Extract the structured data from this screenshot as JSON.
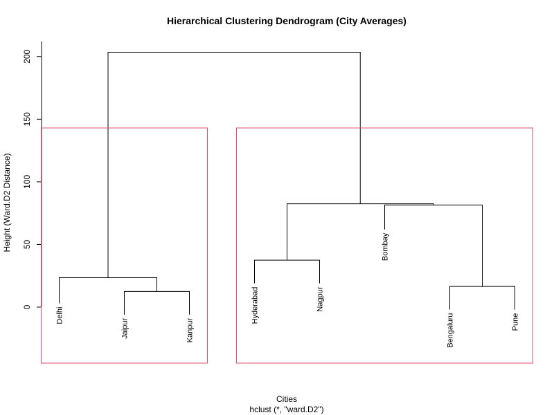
{
  "chart_data": {
    "type": "dendrogram",
    "title": "Hierarchical Clustering Dendrogram (City Averages)",
    "ylabel": "Height (Ward.D2 Distance)",
    "xlabel": "Cities",
    "sub": "hclust (*, \"ward.D2\")",
    "ylim": [
      0,
      200
    ],
    "yticks": [
      0,
      50,
      100,
      150,
      200
    ],
    "leaves": [
      {
        "name": "Delhi",
        "height": 3
      },
      {
        "name": "Jaipur",
        "height": -6
      },
      {
        "name": "Kanpur",
        "height": -6
      },
      {
        "name": "Hyderabad",
        "height": 19
      },
      {
        "name": "Nagpur",
        "height": 19
      },
      {
        "name": "Bombay",
        "height": 62
      },
      {
        "name": "Bengaluru",
        "height": -2
      },
      {
        "name": "Pune",
        "height": -2
      }
    ],
    "merges": [
      {
        "left": {
          "leaf": 1
        },
        "right": {
          "leaf": 2
        },
        "height": 12.5
      },
      {
        "left": {
          "leaf": 0
        },
        "right": {
          "merge": 0
        },
        "height": 23.5
      },
      {
        "left": {
          "leaf": 3
        },
        "right": {
          "leaf": 4
        },
        "height": 37.5
      },
      {
        "left": {
          "leaf": 6
        },
        "right": {
          "leaf": 7
        },
        "height": 16.5
      },
      {
        "left": {
          "leaf": 5
        },
        "right": {
          "merge": 3
        },
        "height": 81.5
      },
      {
        "left": {
          "merge": 2
        },
        "right": {
          "merge": 4
        },
        "height": 82.5
      },
      {
        "left": {
          "merge": 1
        },
        "right": {
          "merge": 5
        },
        "height": 203.5
      }
    ],
    "clusters": [
      {
        "leaves": [
          0,
          1,
          2
        ]
      },
      {
        "leaves": [
          3,
          4,
          5,
          6,
          7
        ]
      }
    ],
    "cluster_rect_color": "#DF536B",
    "branch_color": "#000000"
  }
}
